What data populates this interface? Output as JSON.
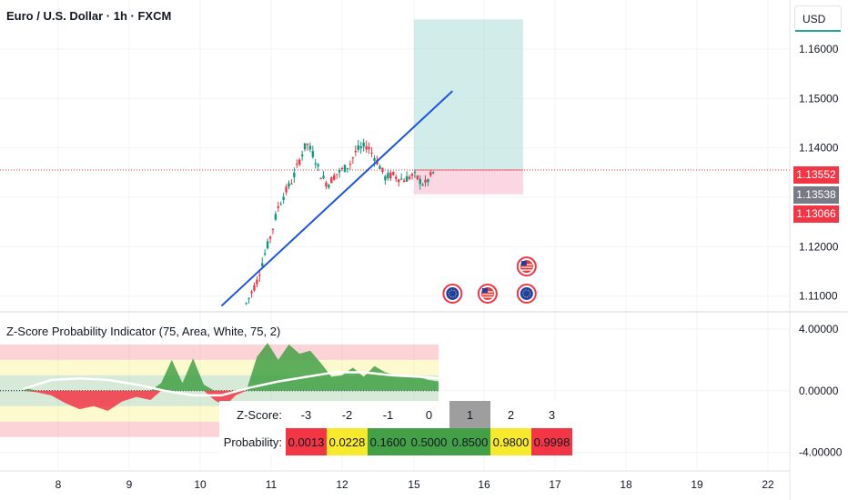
{
  "header": {
    "title": "Euro / U.S. Dollar · 1h · FXCM"
  },
  "currency_button": {
    "label": "USD"
  },
  "indicator": {
    "title": "Z-Score Probability Indicator (75, Area, White, 75, 2)"
  },
  "price_tags": [
    {
      "value": "1.13552",
      "color": "#f23645"
    },
    {
      "value": "1.13538",
      "color": "#787b86"
    },
    {
      "value": "1.13066",
      "color": "#f23645"
    }
  ],
  "zscore_table": {
    "zscore_label": "Z-Score:",
    "probability_label": "Probability:",
    "zscores": [
      "-3",
      "-2",
      "-1",
      "0",
      "1",
      "2",
      "3"
    ],
    "highlighted_zscore": "1",
    "probabilities": [
      "0.0013",
      "0.0228",
      "0.1600",
      "0.5000",
      "0.8500",
      "0.9800",
      "0.9998"
    ],
    "probability_colors": [
      "#f23645",
      "#f7e92b",
      "#43a047",
      "#43a047",
      "#43a047",
      "#f7e92b",
      "#f23645"
    ]
  },
  "chart_data": [
    {
      "type": "candlestick",
      "title": "Euro / U.S. Dollar · 1h · FXCM",
      "x_ticks": [
        "8",
        "9",
        "10",
        "11",
        "12",
        "15",
        "16",
        "17",
        "18",
        "19",
        "22"
      ],
      "y_ticks": [
        "1.11000",
        "1.12000",
        "1.13000",
        "1.14000",
        "1.15000",
        "1.16000"
      ],
      "ylim": [
        1.107,
        1.169
      ],
      "grid": true,
      "last_price": 1.13552,
      "price_path": [
        {
          "x": 10.65,
          "y": 1.1085
        },
        {
          "x": 10.8,
          "y": 1.113
        },
        {
          "x": 10.9,
          "y": 1.118
        },
        {
          "x": 11.0,
          "y": 1.1225
        },
        {
          "x": 11.1,
          "y": 1.128
        },
        {
          "x": 11.2,
          "y": 1.131
        },
        {
          "x": 11.3,
          "y": 1.1335
        },
        {
          "x": 11.4,
          "y": 1.1375
        },
        {
          "x": 11.5,
          "y": 1.141
        },
        {
          "x": 11.6,
          "y": 1.1385
        },
        {
          "x": 11.7,
          "y": 1.1345
        },
        {
          "x": 11.8,
          "y": 1.1325
        },
        {
          "x": 11.9,
          "y": 1.1345
        },
        {
          "x": 12.0,
          "y": 1.1355
        },
        {
          "x": 12.1,
          "y": 1.1365
        },
        {
          "x": 12.2,
          "y": 1.1395
        },
        {
          "x": 12.35,
          "y": 1.1405
        },
        {
          "x": 12.5,
          "y": 1.137
        },
        {
          "x": 12.6,
          "y": 1.134
        },
        {
          "x": 12.7,
          "y": 1.1345
        },
        {
          "x": 12.85,
          "y": 1.1335
        },
        {
          "x": 13.0,
          "y": 1.1345
        },
        {
          "x": 13.15,
          "y": 1.1325
        },
        {
          "x": 13.3,
          "y": 1.1355
        }
      ],
      "trendline": {
        "x": [
          10.3,
          13.55
        ],
        "y": [
          1.108,
          1.1515
        ]
      },
      "position": {
        "x_start": 13.0,
        "x_end": 14.55,
        "entry": 1.13552,
        "target": 1.166,
        "stop": 1.1306
      },
      "event_icons": [
        {
          "x": 13.55,
          "y": 1.1105,
          "kind": "EU"
        },
        {
          "x": 14.05,
          "y": 1.1105,
          "kind": "US"
        },
        {
          "x": 14.6,
          "y": 1.1105,
          "kind": "EU"
        },
        {
          "x": 14.6,
          "y": 1.116,
          "kind": "US"
        }
      ]
    },
    {
      "type": "area",
      "title": "Z-Score Probability Indicator (75, Area, White, 75, 2)",
      "y_ticks": [
        "4.00000",
        "0.00000",
        "-4.00000"
      ],
      "ylim": [
        -5.2,
        5.0
      ],
      "bands": [
        {
          "from": 2,
          "to": 3,
          "color": "#f23645"
        },
        {
          "from": 1,
          "to": 2,
          "color": "#f7e92b"
        },
        {
          "from": -1,
          "to": 1,
          "color": "#43a047"
        },
        {
          "from": -2,
          "to": -1,
          "color": "#f7e92b"
        },
        {
          "from": -3,
          "to": -2,
          "color": "#f23645"
        }
      ],
      "series": [
        {
          "x": [
            7.5,
            7.7,
            7.9,
            8.1,
            8.3,
            8.5,
            8.7,
            8.9,
            9.1,
            9.3,
            9.45,
            9.6,
            9.75,
            9.9,
            10.05,
            10.2,
            10.35,
            10.5,
            10.65,
            10.8,
            10.95,
            11.1,
            11.25,
            11.4,
            11.55,
            11.7,
            11.85,
            12.0,
            12.15,
            12.3,
            12.45,
            12.6,
            12.75,
            12.9,
            13.05,
            13.2,
            13.35
          ],
          "values": [
            0.2,
            -0.1,
            -0.3,
            -0.8,
            -1.2,
            -1.0,
            -1.3,
            -0.7,
            -0.4,
            -0.6,
            0.5,
            2.0,
            0.5,
            2.1,
            0.4,
            -0.6,
            -1.0,
            -0.3,
            0.0,
            2.2,
            3.1,
            2.0,
            3.0,
            2.4,
            2.6,
            1.8,
            0.9,
            1.0,
            1.5,
            0.9,
            1.6,
            1.2,
            1.0,
            0.9,
            0.9,
            0.7,
            0.6
          ]
        },
        {
          "x": [
            7.5,
            7.9,
            8.3,
            8.7,
            9.1,
            9.5,
            9.9,
            10.3,
            10.7,
            11.1,
            11.5,
            11.9,
            12.3,
            12.7,
            13.1,
            13.35
          ],
          "values": [
            0.1,
            0.7,
            0.8,
            0.7,
            0.4,
            0.0,
            -0.3,
            -0.3,
            0.2,
            0.6,
            0.9,
            1.2,
            1.2,
            1.0,
            0.9,
            0.8
          ]
        }
      ]
    }
  ]
}
